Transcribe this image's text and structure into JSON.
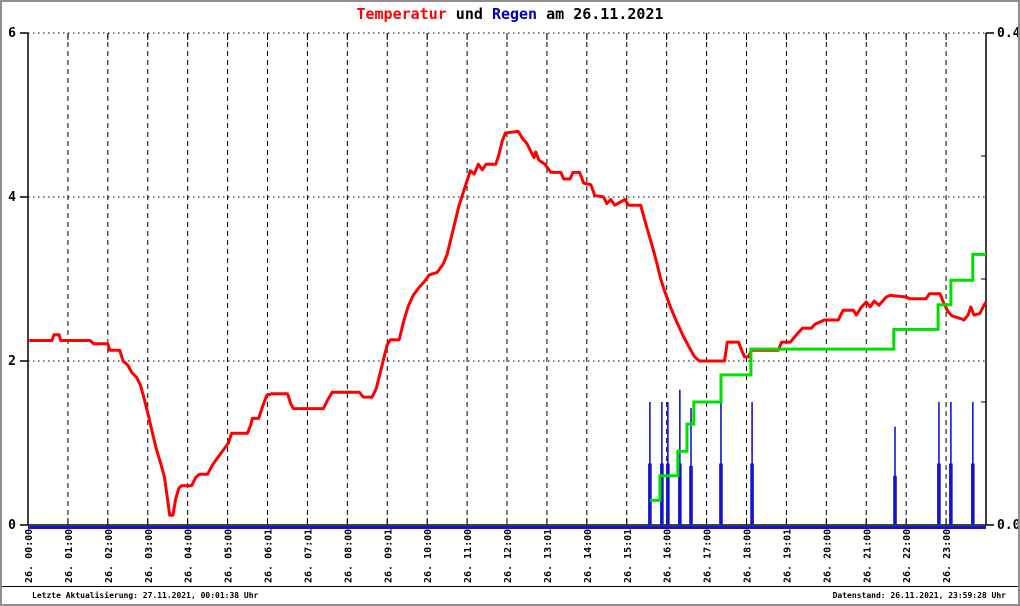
{
  "title": {
    "part1": "Temperatur",
    "part2": " und ",
    "part3": "Regen",
    "part4": " am 26.11.2021"
  },
  "footer": {
    "left": "Letzte Aktualisierung: 27.11.2021, 00:01:38 Uhr",
    "right": "Datenstand: 26.11.2021, 23:59:28 Uhr"
  },
  "colors": {
    "temperature_line": "#ff0000",
    "rain_bars": "#1515cd",
    "rain_zero_line": "#1515cd",
    "sum_line": "#00e000",
    "title_red": "#ff0000",
    "title_blue": "#0000bb",
    "grid": "#000000",
    "text": "#000000"
  },
  "chart_data": {
    "type": "line",
    "title": "Temperatur und Regen am 26.11.2021",
    "xlabel": "",
    "ylabel": "",
    "x_axis": {
      "range_hours": [
        0,
        24
      ],
      "tick_every_hours": 1,
      "ticklabels": [
        "26. 00:00",
        "26. 01:00",
        "26. 02:00",
        "26. 03:00",
        "26. 04:00",
        "26. 05:00",
        "26. 06:01",
        "26. 07:01",
        "26. 08:00",
        "26. 09:01",
        "26. 10:00",
        "26. 11:00",
        "26. 12:00",
        "26. 13:01",
        "26. 14:00",
        "26. 15:01",
        "26. 16:00",
        "26. 17:00",
        "26. 18:00",
        "26. 19:01",
        "26. 20:00",
        "26. 21:00",
        "26. 22:00",
        "26. 23:00"
      ]
    },
    "y_left_axis": {
      "range": [
        0,
        6
      ],
      "ticks": [
        0,
        2,
        4,
        6
      ],
      "ticklabels": [
        "0",
        "2",
        "4",
        "6"
      ],
      "gridlines_at": [
        2,
        4,
        6
      ]
    },
    "y_right_axis": {
      "range": [
        0,
        0.4
      ],
      "ticks": [
        0,
        0.4
      ],
      "ticklabels": [
        "0.0",
        "0.4"
      ],
      "minor_ticks": [
        0.1,
        0.2,
        0.3
      ]
    },
    "series": [
      {
        "id": "temperature_line",
        "style": "line",
        "axis": "left",
        "points": [
          [
            0.03,
            2.25
          ],
          [
            0.6,
            2.25
          ],
          [
            0.65,
            2.32
          ],
          [
            0.78,
            2.32
          ],
          [
            0.82,
            2.25
          ],
          [
            1.55,
            2.25
          ],
          [
            1.65,
            2.21
          ],
          [
            2.0,
            2.21
          ],
          [
            2.05,
            2.13
          ],
          [
            2.3,
            2.13
          ],
          [
            2.38,
            2.0
          ],
          [
            2.5,
            1.95
          ],
          [
            2.6,
            1.86
          ],
          [
            2.72,
            1.8
          ],
          [
            2.82,
            1.7
          ],
          [
            2.92,
            1.52
          ],
          [
            3.02,
            1.33
          ],
          [
            3.12,
            1.12
          ],
          [
            3.22,
            0.92
          ],
          [
            3.32,
            0.76
          ],
          [
            3.42,
            0.58
          ],
          [
            3.5,
            0.3
          ],
          [
            3.55,
            0.12
          ],
          [
            3.63,
            0.12
          ],
          [
            3.7,
            0.32
          ],
          [
            3.78,
            0.45
          ],
          [
            3.85,
            0.48
          ],
          [
            4.1,
            0.48
          ],
          [
            4.2,
            0.58
          ],
          [
            4.3,
            0.62
          ],
          [
            4.5,
            0.62
          ],
          [
            4.62,
            0.73
          ],
          [
            4.75,
            0.82
          ],
          [
            4.9,
            0.92
          ],
          [
            5.02,
            1.0
          ],
          [
            5.1,
            1.12
          ],
          [
            5.5,
            1.12
          ],
          [
            5.58,
            1.22
          ],
          [
            5.62,
            1.3
          ],
          [
            5.78,
            1.3
          ],
          [
            5.88,
            1.45
          ],
          [
            5.98,
            1.58
          ],
          [
            6.1,
            1.6
          ],
          [
            6.5,
            1.6
          ],
          [
            6.58,
            1.48
          ],
          [
            6.65,
            1.42
          ],
          [
            7.4,
            1.42
          ],
          [
            7.5,
            1.52
          ],
          [
            7.62,
            1.62
          ],
          [
            8.3,
            1.62
          ],
          [
            8.4,
            1.56
          ],
          [
            8.62,
            1.56
          ],
          [
            8.72,
            1.66
          ],
          [
            8.82,
            1.85
          ],
          [
            8.92,
            2.05
          ],
          [
            9.0,
            2.2
          ],
          [
            9.08,
            2.26
          ],
          [
            9.3,
            2.26
          ],
          [
            9.42,
            2.5
          ],
          [
            9.52,
            2.66
          ],
          [
            9.65,
            2.8
          ],
          [
            9.8,
            2.9
          ],
          [
            9.95,
            2.98
          ],
          [
            10.05,
            3.05
          ],
          [
            10.25,
            3.08
          ],
          [
            10.4,
            3.18
          ],
          [
            10.5,
            3.3
          ],
          [
            10.6,
            3.5
          ],
          [
            10.7,
            3.7
          ],
          [
            10.8,
            3.9
          ],
          [
            10.9,
            4.05
          ],
          [
            11.0,
            4.2
          ],
          [
            11.08,
            4.32
          ],
          [
            11.18,
            4.28
          ],
          [
            11.28,
            4.4
          ],
          [
            11.38,
            4.33
          ],
          [
            11.48,
            4.4
          ],
          [
            11.72,
            4.4
          ],
          [
            11.8,
            4.52
          ],
          [
            11.88,
            4.68
          ],
          [
            11.96,
            4.78
          ],
          [
            12.28,
            4.8
          ],
          [
            12.38,
            4.72
          ],
          [
            12.5,
            4.65
          ],
          [
            12.6,
            4.55
          ],
          [
            12.68,
            4.48
          ],
          [
            12.72,
            4.55
          ],
          [
            12.8,
            4.45
          ],
          [
            12.95,
            4.4
          ],
          [
            13.1,
            4.3
          ],
          [
            13.35,
            4.3
          ],
          [
            13.42,
            4.22
          ],
          [
            13.58,
            4.22
          ],
          [
            13.65,
            4.3
          ],
          [
            13.82,
            4.3
          ],
          [
            13.92,
            4.17
          ],
          [
            14.1,
            4.15
          ],
          [
            14.2,
            4.02
          ],
          [
            14.42,
            4.0
          ],
          [
            14.5,
            3.92
          ],
          [
            14.6,
            3.97
          ],
          [
            14.7,
            3.9
          ],
          [
            14.95,
            3.97
          ],
          [
            15.05,
            3.9
          ],
          [
            15.35,
            3.9
          ],
          [
            15.45,
            3.72
          ],
          [
            15.55,
            3.55
          ],
          [
            15.65,
            3.38
          ],
          [
            15.75,
            3.2
          ],
          [
            15.85,
            3.0
          ],
          [
            15.95,
            2.85
          ],
          [
            16.1,
            2.65
          ],
          [
            16.25,
            2.48
          ],
          [
            16.4,
            2.32
          ],
          [
            16.55,
            2.18
          ],
          [
            16.7,
            2.05
          ],
          [
            16.82,
            2.0
          ],
          [
            17.45,
            2.0
          ],
          [
            17.52,
            2.23
          ],
          [
            17.8,
            2.23
          ],
          [
            17.88,
            2.13
          ],
          [
            17.95,
            2.05
          ],
          [
            18.05,
            2.05
          ],
          [
            18.12,
            2.13
          ],
          [
            18.8,
            2.13
          ],
          [
            18.88,
            2.23
          ],
          [
            19.1,
            2.23
          ],
          [
            19.25,
            2.32
          ],
          [
            19.4,
            2.4
          ],
          [
            19.62,
            2.4
          ],
          [
            19.72,
            2.45
          ],
          [
            19.95,
            2.5
          ],
          [
            20.3,
            2.5
          ],
          [
            20.42,
            2.62
          ],
          [
            20.68,
            2.62
          ],
          [
            20.75,
            2.56
          ],
          [
            20.88,
            2.66
          ],
          [
            21.0,
            2.72
          ],
          [
            21.1,
            2.66
          ],
          [
            21.2,
            2.73
          ],
          [
            21.32,
            2.68
          ],
          [
            21.5,
            2.78
          ],
          [
            21.6,
            2.8
          ],
          [
            22.0,
            2.78
          ],
          [
            22.08,
            2.76
          ],
          [
            22.5,
            2.76
          ],
          [
            22.58,
            2.82
          ],
          [
            22.85,
            2.82
          ],
          [
            22.92,
            2.73
          ],
          [
            23.05,
            2.6
          ],
          [
            23.15,
            2.55
          ],
          [
            23.35,
            2.52
          ],
          [
            23.45,
            2.5
          ],
          [
            23.55,
            2.56
          ],
          [
            23.62,
            2.66
          ],
          [
            23.7,
            2.56
          ],
          [
            23.85,
            2.58
          ],
          [
            23.95,
            2.68
          ],
          [
            24.0,
            2.72
          ]
        ]
      },
      {
        "id": "sum_step_line",
        "style": "step",
        "axis": "right",
        "end_hour": 24.0,
        "steps": [
          [
            15.58,
            0.02
          ],
          [
            15.83,
            0.04
          ],
          [
            16.28,
            0.06
          ],
          [
            16.51,
            0.082
          ],
          [
            16.68,
            0.1
          ],
          [
            17.36,
            0.122
          ],
          [
            18.11,
            0.143
          ],
          [
            21.69,
            0.159
          ],
          [
            22.8,
            0.179
          ],
          [
            23.12,
            0.199
          ],
          [
            23.67,
            0.22
          ]
        ]
      },
      {
        "id": "rain_bars",
        "style": "impulse",
        "axis": "right",
        "baseline_value": 0,
        "bars": [
          [
            15.58,
            0.1,
            0.05
          ],
          [
            15.88,
            0.1,
            0.05
          ],
          [
            16.03,
            0.1,
            0.05
          ],
          [
            16.33,
            0.11,
            0.05
          ],
          [
            16.61,
            0.095,
            0.048
          ],
          [
            17.36,
            0.1,
            0.05
          ],
          [
            18.14,
            0.1,
            0.05
          ],
          [
            21.72,
            0.08,
            0.04
          ],
          [
            22.82,
            0.1,
            0.05
          ],
          [
            23.12,
            0.1,
            0.05
          ],
          [
            23.67,
            0.1,
            0.05
          ]
        ]
      }
    ]
  }
}
